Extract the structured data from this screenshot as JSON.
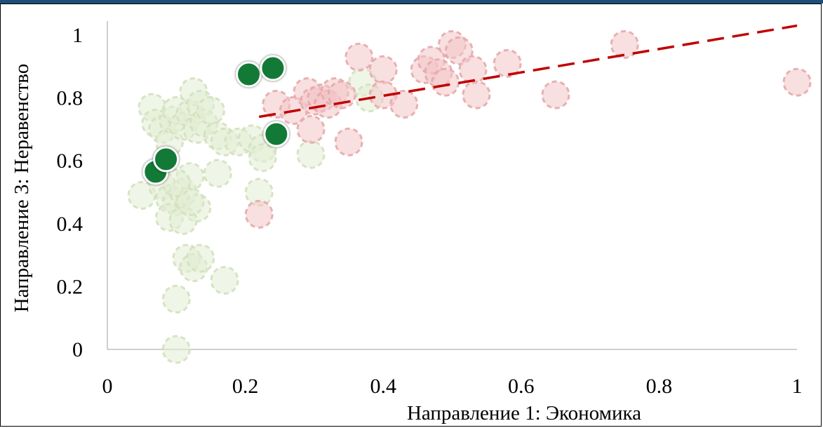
{
  "chart_data": {
    "type": "scatter",
    "xlabel": "Направление 1: Экономика",
    "ylabel": "Направление 3: Неравенство",
    "xlim": [
      0,
      1
    ],
    "ylim": [
      0,
      1
    ],
    "x_ticks": [
      "0",
      "0.2",
      "0.4",
      "0.6",
      "0.8",
      "1"
    ],
    "y_ticks": [
      "0",
      "0.2",
      "0.4",
      "0.6",
      "0.8",
      "1"
    ],
    "grid": false,
    "legend": "none",
    "colors": {
      "light_green": "#e2ecd3",
      "light_green_stroke": "#d2e1bd",
      "light_red": "#f3c5c7",
      "light_red_stroke": "#e6a8ab",
      "dark_green": "#127a36",
      "trendline": "#c00000",
      "header_bar": "#1f4e79"
    },
    "series": [
      {
        "points": [
          [
            0.065,
            0.77
          ],
          [
            0.07,
            0.72
          ],
          [
            0.08,
            0.7
          ],
          [
            0.09,
            0.66
          ],
          [
            0.095,
            0.73
          ],
          [
            0.1,
            0.76
          ],
          [
            0.11,
            0.71
          ],
          [
            0.12,
            0.75
          ],
          [
            0.125,
            0.82
          ],
          [
            0.13,
            0.7
          ],
          [
            0.135,
            0.78
          ],
          [
            0.14,
            0.72
          ],
          [
            0.15,
            0.76
          ],
          [
            0.16,
            0.68
          ],
          [
            0.17,
            0.66
          ],
          [
            0.16,
            0.56
          ],
          [
            0.05,
            0.49
          ],
          [
            0.08,
            0.52
          ],
          [
            0.09,
            0.48
          ],
          [
            0.1,
            0.47
          ],
          [
            0.11,
            0.5
          ],
          [
            0.12,
            0.55
          ],
          [
            0.13,
            0.45
          ],
          [
            0.09,
            0.42
          ],
          [
            0.11,
            0.41
          ],
          [
            0.12,
            0.47
          ],
          [
            0.1,
            0.53
          ],
          [
            0.115,
            0.29
          ],
          [
            0.125,
            0.26
          ],
          [
            0.135,
            0.29
          ],
          [
            0.17,
            0.22
          ],
          [
            0.1,
            0.16
          ],
          [
            0.1,
            0.0
          ],
          [
            0.19,
            0.66
          ],
          [
            0.21,
            0.67
          ],
          [
            0.225,
            0.64
          ],
          [
            0.225,
            0.61
          ],
          [
            0.22,
            0.5
          ],
          [
            0.295,
            0.62
          ],
          [
            0.37,
            0.85
          ],
          [
            0.38,
            0.8
          ]
        ]
      },
      {
        "points": [
          [
            0.22,
            0.43
          ],
          [
            0.245,
            0.78
          ],
          [
            0.27,
            0.76
          ],
          [
            0.29,
            0.82
          ],
          [
            0.3,
            0.79
          ],
          [
            0.31,
            0.8
          ],
          [
            0.32,
            0.78
          ],
          [
            0.33,
            0.82
          ],
          [
            0.34,
            0.81
          ],
          [
            0.295,
            0.7
          ],
          [
            0.35,
            0.66
          ],
          [
            0.365,
            0.93
          ],
          [
            0.4,
            0.89
          ],
          [
            0.4,
            0.81
          ],
          [
            0.43,
            0.78
          ],
          [
            0.46,
            0.89
          ],
          [
            0.47,
            0.92
          ],
          [
            0.48,
            0.88
          ],
          [
            0.49,
            0.85
          ],
          [
            0.5,
            0.97
          ],
          [
            0.51,
            0.95
          ],
          [
            0.53,
            0.89
          ],
          [
            0.535,
            0.81
          ],
          [
            0.58,
            0.91
          ],
          [
            0.65,
            0.81
          ],
          [
            0.75,
            0.97
          ],
          [
            1.0,
            0.85
          ]
        ]
      },
      {
        "points": [
          [
            0.07,
            0.565
          ],
          [
            0.085,
            0.605
          ],
          [
            0.205,
            0.875
          ],
          [
            0.24,
            0.895
          ],
          [
            0.245,
            0.685
          ]
        ]
      }
    ],
    "trendline": {
      "style": "dashed",
      "from": [
        0.22,
        0.74
      ],
      "to": [
        1.0,
        1.03
      ]
    }
  }
}
